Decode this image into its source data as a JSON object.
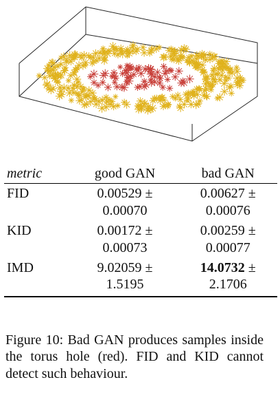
{
  "table": {
    "headers": [
      "metric",
      "good GAN",
      "bad GAN"
    ],
    "rows": [
      {
        "metric": "FID",
        "good": [
          "0.00529 ±",
          "0.00070"
        ],
        "bad": [
          "0.00627 ±",
          "0.00076"
        ],
        "bad_bold": false
      },
      {
        "metric": "KID",
        "good": [
          "0.00172 ±",
          "0.00073"
        ],
        "bad": [
          "0.00259 ±",
          "0.00077"
        ],
        "bad_bold": false
      },
      {
        "metric": "IMD",
        "good": [
          "9.02059 ±",
          "1.5195"
        ],
        "bad": [
          "14.0732",
          "±",
          "2.1706"
        ],
        "bad_bold": true
      }
    ]
  },
  "caption": "Figure 10:   Bad GAN produces samples inside the torus hole (red). FID and KID cannot detect such behaviour.",
  "plot": {
    "yellow_color": "#e0b21c",
    "red_color": "#c8403a"
  }
}
